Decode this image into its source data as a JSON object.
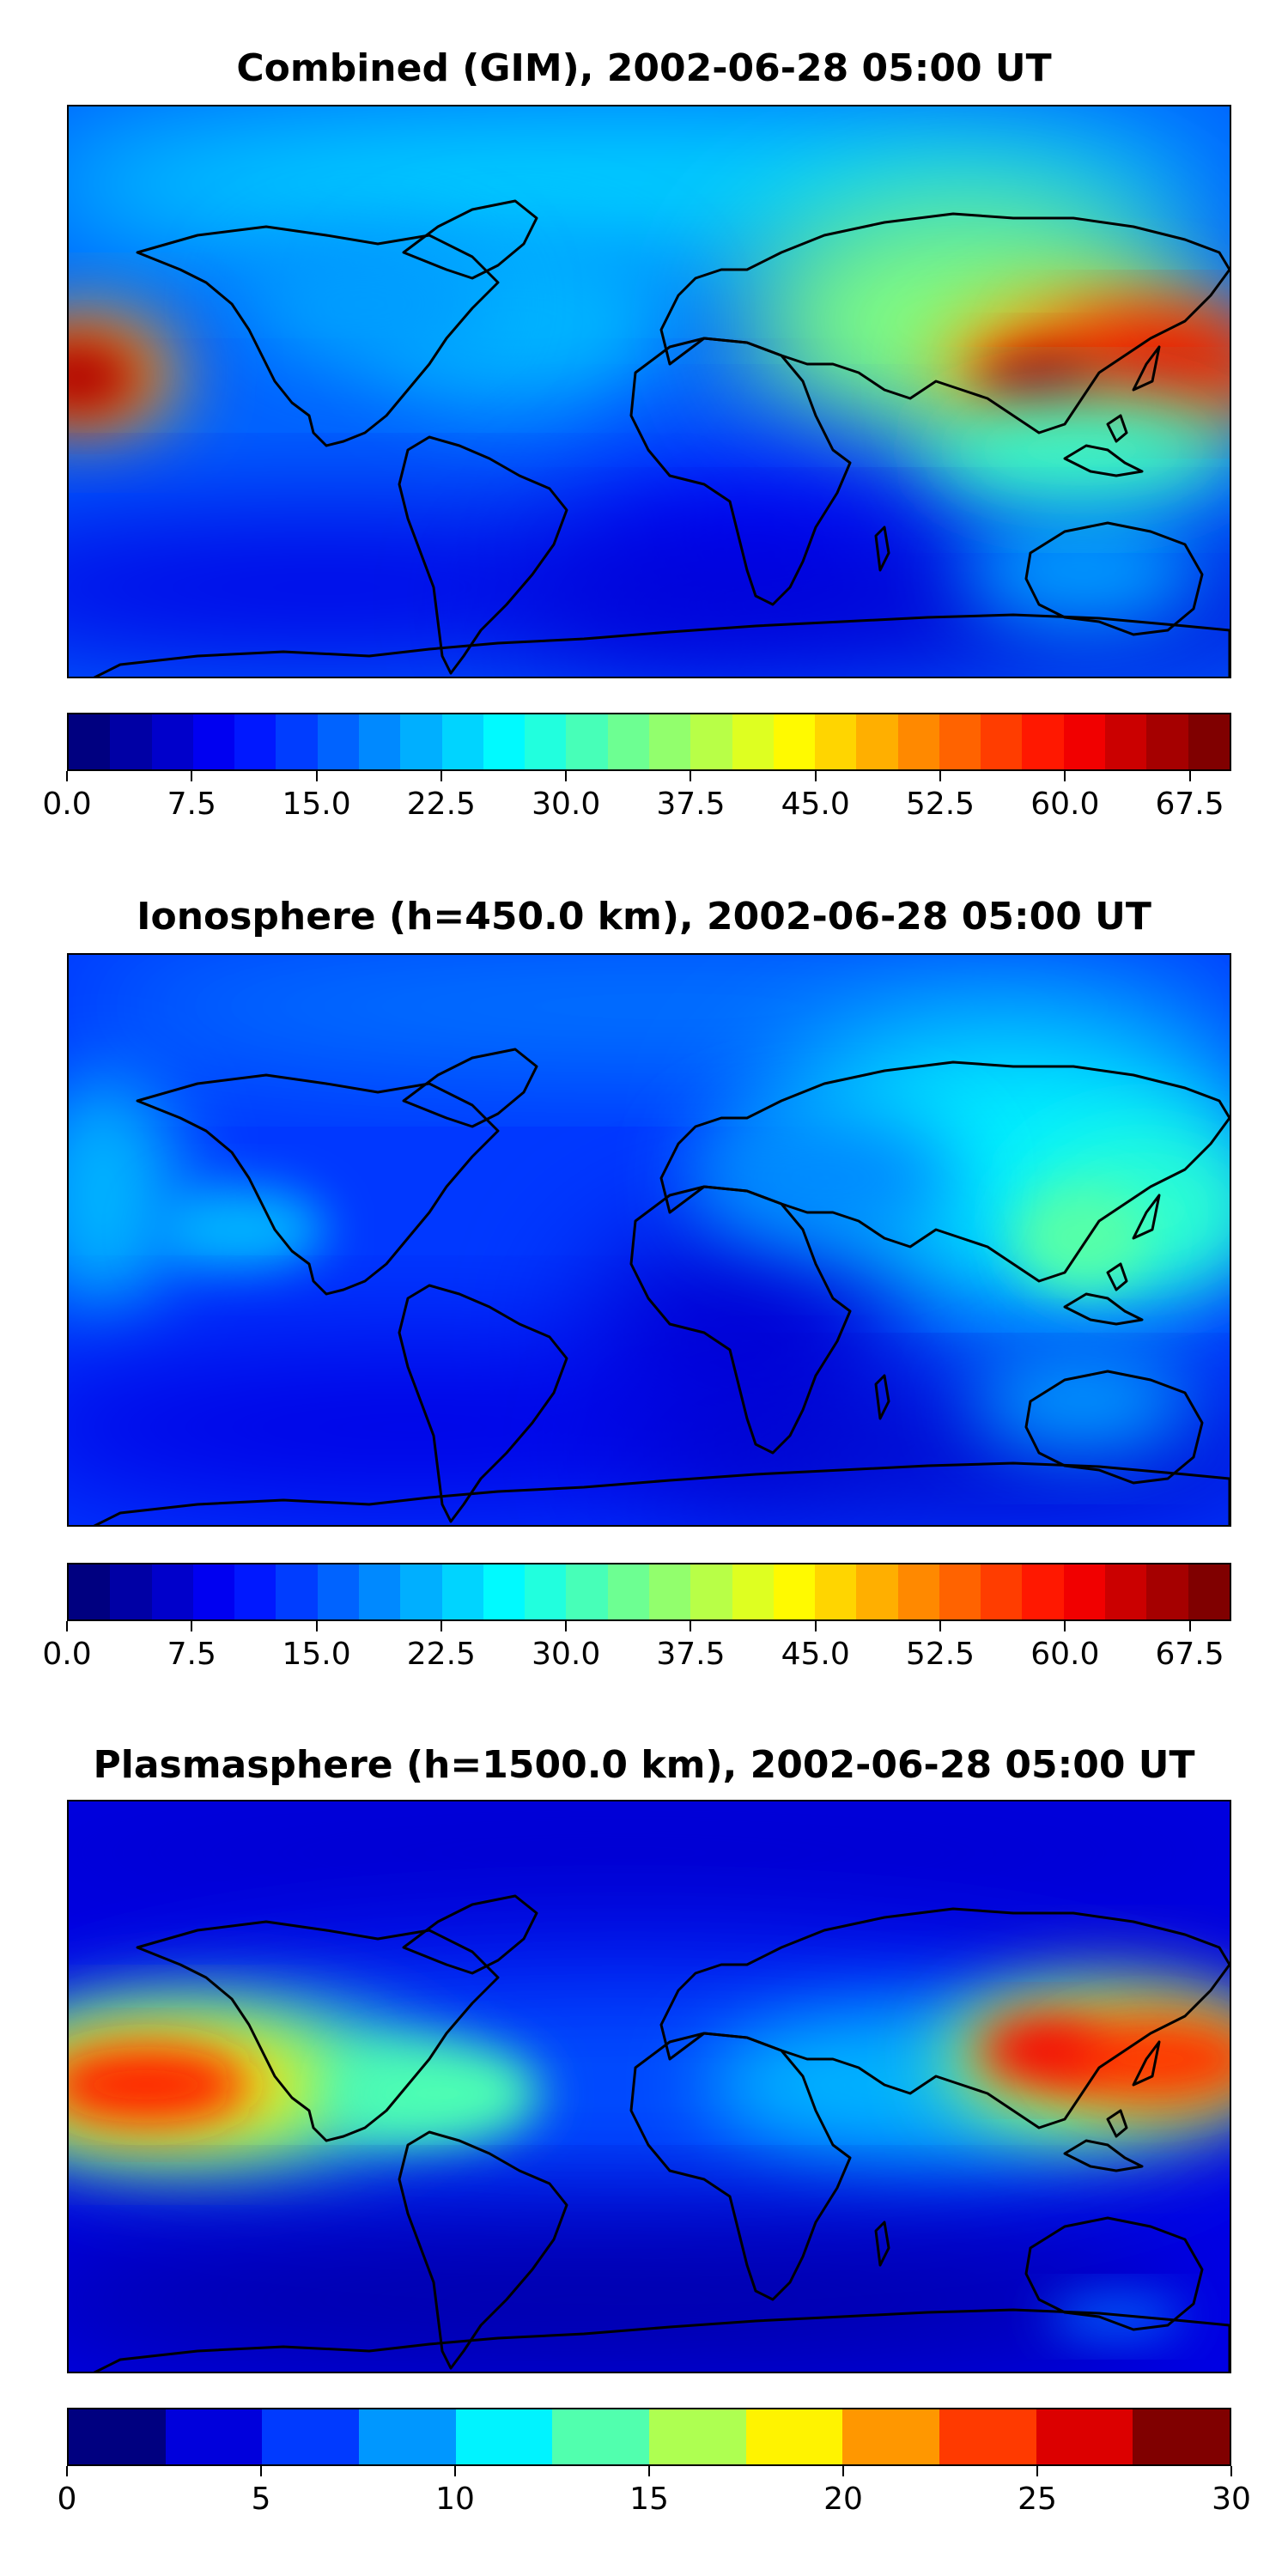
{
  "panels": [
    {
      "title": "Combined (GIM), 2002-06-28 05:00 UT",
      "colorbar": {
        "vmin": 0,
        "vmax": 70,
        "levels": 28,
        "tick_values": [
          0,
          7.5,
          15,
          22.5,
          30,
          37.5,
          45,
          52.5,
          60,
          67.5
        ],
        "tick_labels": [
          "0.0",
          "7.5",
          "15.0",
          "22.5",
          "30.0",
          "37.5",
          "45.0",
          "52.5",
          "60.0",
          "67.5"
        ]
      }
    },
    {
      "title": "Ionosphere  (h=450.0 km), 2002-06-28 05:00 UT",
      "colorbar": {
        "vmin": 0,
        "vmax": 70,
        "levels": 28,
        "tick_values": [
          0,
          7.5,
          15,
          22.5,
          30,
          37.5,
          45,
          52.5,
          60,
          67.5
        ],
        "tick_labels": [
          "0.0",
          "7.5",
          "15.0",
          "22.5",
          "30.0",
          "37.5",
          "45.0",
          "52.5",
          "60.0",
          "67.5"
        ]
      }
    },
    {
      "title": "Plasmasphere (h=1500.0 km), 2002-06-28 05:00 UT",
      "colorbar": {
        "vmin": 0,
        "vmax": 30,
        "levels": 12,
        "tick_values": [
          0,
          5,
          10,
          15,
          20,
          25,
          30
        ],
        "tick_labels": [
          "0",
          "5",
          "10",
          "15",
          "20",
          "25",
          "30"
        ]
      }
    }
  ]
}
